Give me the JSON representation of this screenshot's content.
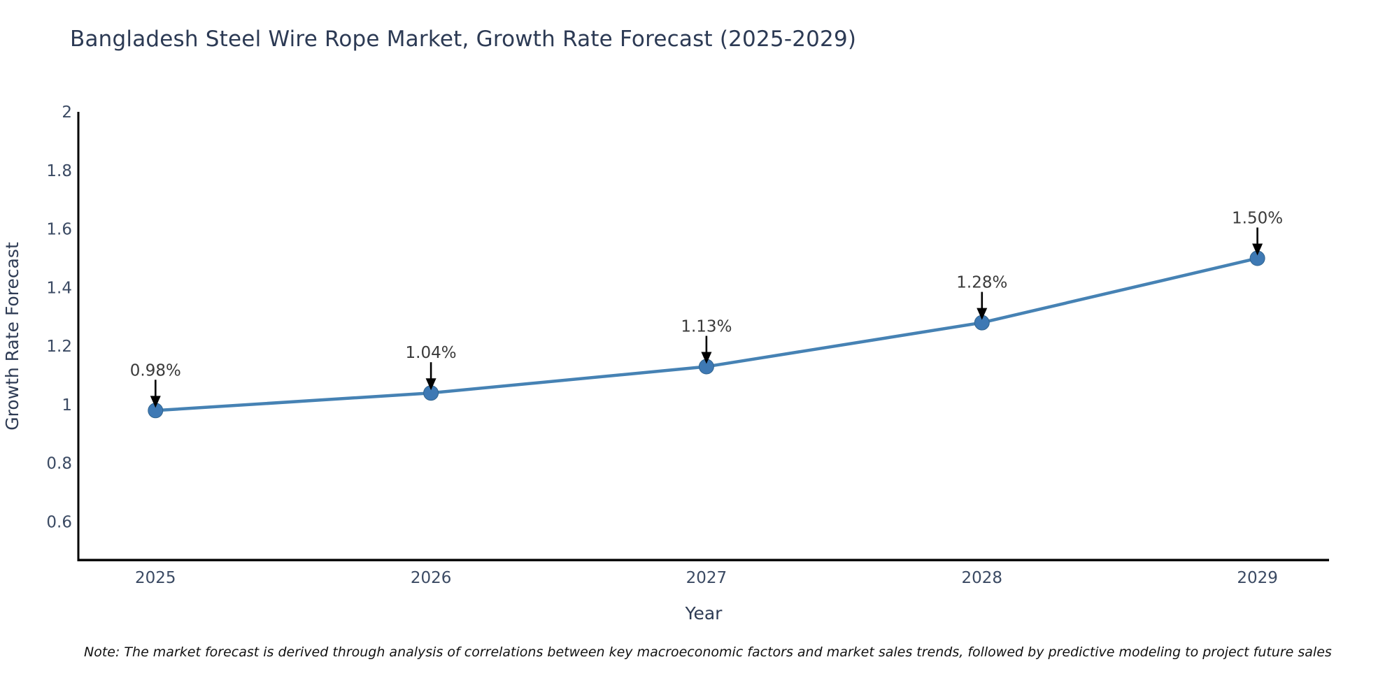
{
  "title": "Bangladesh Steel Wire Rope Market, Growth Rate Forecast (2025-2029)",
  "note": {
    "text": "Note: The market forecast is derived through analysis of correlations between key macroeconomic factors and market sales trends, followed by predictive modeling to project future sales"
  },
  "chart_data": {
    "type": "line",
    "title": "Bangladesh Steel Wire Rope Market, Growth Rate Forecast (2025-2029)",
    "xlabel": "Year",
    "ylabel": "Growth Rate Forecast",
    "x": [
      2025,
      2026,
      2027,
      2028,
      2029
    ],
    "x_tick_labels": [
      "2025",
      "2026",
      "2027",
      "2028",
      "2029"
    ],
    "series": [
      {
        "name": "Growth Rate Forecast",
        "values": [
          0.98,
          1.04,
          1.13,
          1.28,
          1.5
        ],
        "point_labels": [
          "0.98%",
          "1.04%",
          "1.13%",
          "1.28%",
          "1.50%"
        ]
      }
    ],
    "yticks": [
      0.6,
      0.8,
      1,
      1.2,
      1.4,
      1.6,
      1.8,
      2
    ],
    "ytick_labels": [
      "0.6",
      "0.8",
      "1",
      "1.2",
      "1.4",
      "1.6",
      "1.8",
      "2"
    ],
    "ylim": [
      0.47,
      2.0
    ],
    "xlim": [
      2024.72,
      2029.26
    ],
    "grid": false,
    "legend": "none",
    "annotation_style": "down-arrow",
    "colors": {
      "line": "#4682b4",
      "marker": "#3e79b4",
      "marker_edge": "#31648e",
      "axis": "#000000",
      "tick_label": "#3b4a63",
      "axis_title": "#2e3b54",
      "chart_title": "#2c3a54",
      "annotation_text": "#3a3a3a",
      "annotation_arrow": "#000000",
      "note_text": "#111111",
      "background": "#ffffff"
    }
  }
}
